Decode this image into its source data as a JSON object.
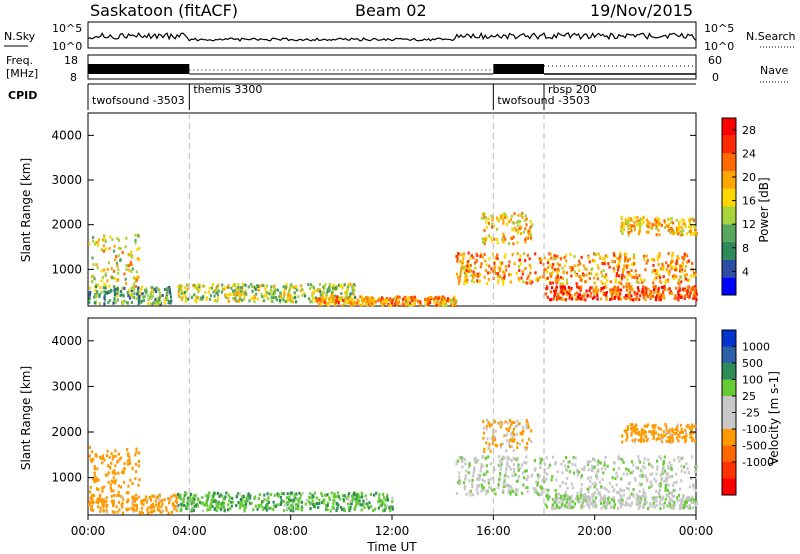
{
  "header": {
    "site": "Saskatoon (fitACF)",
    "beam": "Beam 02",
    "date": "19/Nov/2015"
  },
  "top_panels": {
    "nsky_label": "N.Sky",
    "nsky_ticks": [
      "10^5",
      "10^0"
    ],
    "nsearch_label": "N.Search",
    "freq_label_line1": "Freq.",
    "freq_label_line2": "[MHz]",
    "freq_ticks": [
      "18",
      "8"
    ],
    "nave_ticks": [
      "60",
      "0"
    ],
    "nave_label": "Nave",
    "cpid_label": "CPID",
    "cpid_segments": [
      {
        "label": "twofsound -3503",
        "start_h": 0,
        "end_h": 4
      },
      {
        "label": "themis 3300",
        "start_h": 4,
        "end_h": 16
      },
      {
        "label": "twofsound -3503",
        "start_h": 16,
        "end_h": 18
      },
      {
        "label": "rbsp 200",
        "start_h": 18,
        "end_h": 24
      }
    ]
  },
  "colors": {
    "power_scale": [
      "#0000ff",
      "#2c4fa4",
      "#2e8b57",
      "#57a85e",
      "#a8d33a",
      "#ffd700",
      "#ffa500",
      "#ff6a00",
      "#ff2a00",
      "#ff0000"
    ],
    "velocity_scale": [
      "#0033cc",
      "#2d5fa8",
      "#2e8b57",
      "#66cc33",
      "#c8c8c8",
      "#c8c8c8",
      "#ff9900",
      "#ff6600",
      "#ff3300",
      "#ff0000"
    ],
    "ground_scatter": "#c8c8c8"
  },
  "chart_data": [
    {
      "type": "heatmap",
      "title": "",
      "ylabel": "Slant Range [km]",
      "xlabel": "",
      "xlim_hours": [
        0,
        24
      ],
      "ylim_km": [
        180,
        4500
      ],
      "yticks": [
        "1000",
        "2000",
        "3000",
        "4000"
      ],
      "colorbar": {
        "label": "Power [dB]",
        "ticks": [
          "4",
          "8",
          "12",
          "16",
          "20",
          "24",
          "28"
        ],
        "range": [
          0,
          30
        ]
      },
      "echo_regions": [
        {
          "t0": 0.0,
          "t1": 2.0,
          "r0": 600,
          "r1": 1800,
          "value": 16
        },
        {
          "t0": 0.0,
          "t1": 3.3,
          "r0": 250,
          "r1": 650,
          "value": 10
        },
        {
          "t0": 3.5,
          "t1": 10.5,
          "r0": 300,
          "r1": 700,
          "value": 14
        },
        {
          "t0": 9.0,
          "t1": 14.5,
          "r0": 220,
          "r1": 420,
          "value": 20
        },
        {
          "t0": 14.5,
          "t1": 24.0,
          "r0": 700,
          "r1": 1400,
          "value": 20
        },
        {
          "t0": 15.5,
          "t1": 17.5,
          "r0": 1600,
          "r1": 2300,
          "value": 18
        },
        {
          "t0": 18.0,
          "t1": 24.0,
          "r0": 350,
          "r1": 650,
          "value": 24
        },
        {
          "t0": 21.0,
          "t1": 24.0,
          "r0": 1800,
          "r1": 2200,
          "value": 18
        }
      ]
    },
    {
      "type": "heatmap",
      "title": "",
      "ylabel": "Slant Range [km]",
      "xlabel": "Time UT",
      "xlim_hours": [
        0,
        24
      ],
      "ylim_km": [
        180,
        4500
      ],
      "yticks": [
        "1000",
        "2000",
        "3000",
        "4000"
      ],
      "xticks": [
        "00:00",
        "04:00",
        "08:00",
        "12:00",
        "16:00",
        "20:00",
        "00:00"
      ],
      "colorbar": {
        "label": "Velocity [m s-1]",
        "ticks": [
          "1000",
          "500",
          "100",
          "25",
          "-25",
          "-100",
          "-500",
          "-1000"
        ],
        "range": [
          -1000,
          1000
        ]
      },
      "echo_regions": [
        {
          "t0": 0.0,
          "t1": 2.0,
          "r0": 700,
          "r1": 1700,
          "value": -200
        },
        {
          "t0": 0.0,
          "t1": 3.5,
          "r0": 250,
          "r1": 650,
          "value": -150
        },
        {
          "t0": 3.5,
          "t1": 12.0,
          "r0": 300,
          "r1": 700,
          "value": 80
        },
        {
          "t0": 14.5,
          "t1": 24.0,
          "r0": 650,
          "r1": 1500,
          "value": 0
        },
        {
          "t0": 15.5,
          "t1": 17.5,
          "r0": 1600,
          "r1": 2300,
          "value": -120
        },
        {
          "t0": 18.0,
          "t1": 24.0,
          "r0": 350,
          "r1": 650,
          "value": 0
        },
        {
          "t0": 21.0,
          "t1": 24.0,
          "r0": 1800,
          "r1": 2200,
          "value": -150
        }
      ]
    }
  ]
}
